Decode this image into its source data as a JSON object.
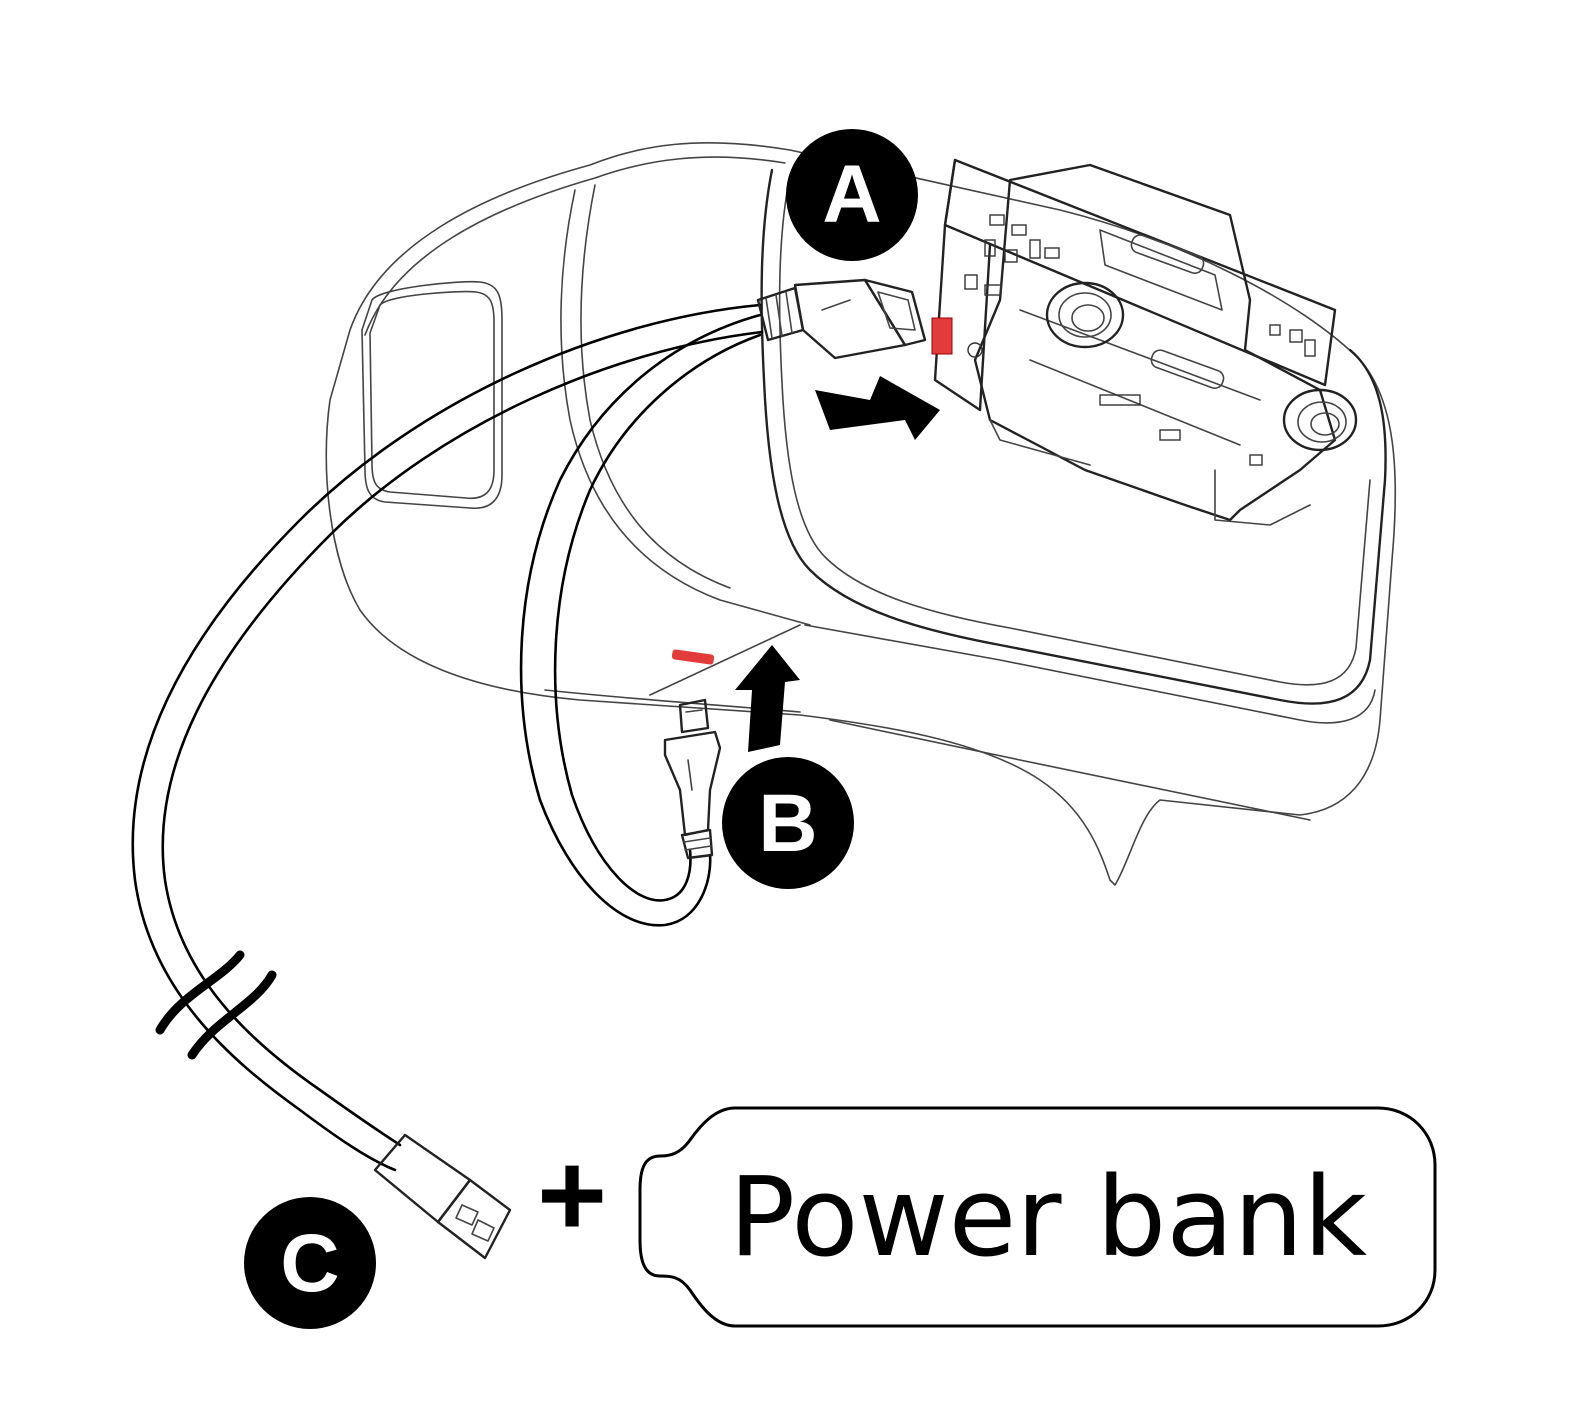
{
  "step_badges": [
    {
      "id": "a",
      "letter": "A"
    },
    {
      "id": "b",
      "letter": "B"
    },
    {
      "id": "c",
      "letter": "C"
    }
  ],
  "plus_symbol": "+",
  "power_bank": {
    "label": "Power bank"
  },
  "icons": [
    "vr-headset-body",
    "camera-board",
    "micro-usb-plug-a",
    "micro-usb-plug-b",
    "usb-a-plug",
    "push-arrow",
    "cable-break-marks",
    "battery-shape"
  ],
  "colors": {
    "ink": "#000000",
    "accent": "#e23b3b",
    "background": "#ffffff"
  }
}
